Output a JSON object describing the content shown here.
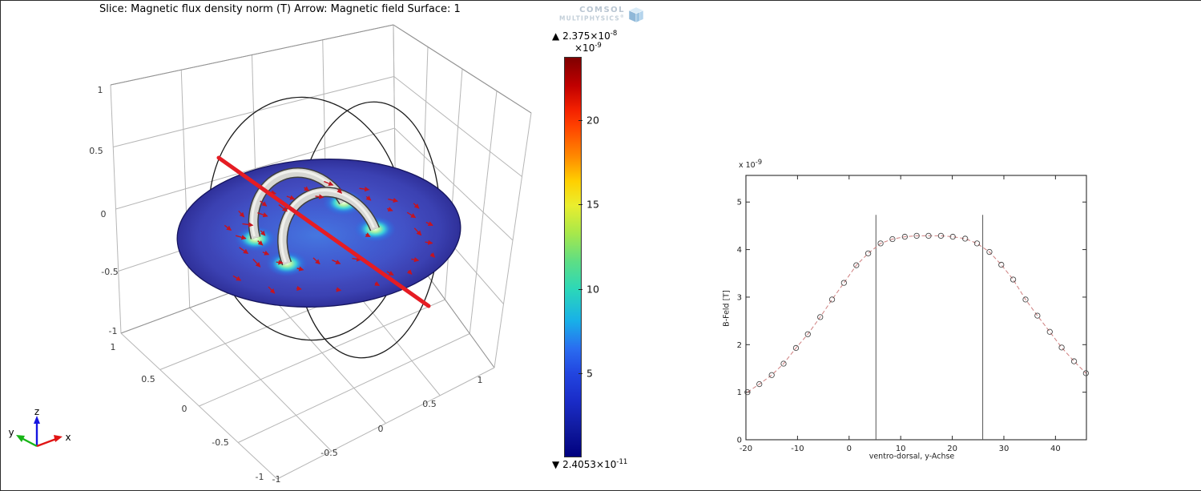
{
  "plot3d": {
    "title": "Slice: Magnetic flux density norm (T) Arrow: Magnetic field Surface: 1",
    "z_ticks": [
      "1",
      "0.5",
      "0",
      "-0.5",
      "-1"
    ],
    "y_floor_ticks": [
      "1",
      "0.5",
      "0",
      "-0.5",
      "-1"
    ],
    "x_floor_ticks": [
      "1",
      "0.5",
      "0",
      "-0.5",
      "-1"
    ],
    "triad": {
      "x_label": "x",
      "y_label": "y",
      "z_label": "z"
    }
  },
  "logo": {
    "line1": "COMSOL",
    "line2": "MULTIPHYSICS",
    "registered": "®"
  },
  "colorbar": {
    "max_marker": "▲",
    "max_base": "2.375×10",
    "max_exp": "-8",
    "scale_base": "×10",
    "scale_exp": "-9",
    "ticks": [
      "20",
      "15",
      "10",
      "5"
    ],
    "tick_values": [
      20,
      15,
      10,
      5
    ],
    "min_marker": "▼",
    "min_base": "2.4053×10",
    "min_exp": "-11",
    "range_max": 23.75,
    "range_min": 0.024053
  },
  "colors": {
    "red_line": "#e51c23",
    "field_arrow": "#c41420",
    "curve_line": "#cf7f7f",
    "marker_edge": "#4a4a4a",
    "marker_line": "#555555",
    "disc_blue": "#4450c4",
    "colorbar_top": "#7f0000",
    "colorbar_bottom": "#000080"
  },
  "chart_data": {
    "type": "line",
    "title": "",
    "xlabel": "ventro-dorsal, y-Achse",
    "ylabel": "B-Feld [T]",
    "y_multiplier_base": "x 10",
    "y_multiplier_exp": "-9",
    "xlim": [
      -20,
      46
    ],
    "ylim": [
      0,
      5.56
    ],
    "xticks": [
      "-20",
      "-10",
      "0",
      "10",
      "20",
      "30",
      "40"
    ],
    "xtick_values": [
      -20,
      -10,
      0,
      10,
      20,
      30,
      40
    ],
    "yticks": [
      "0",
      "1",
      "2",
      "3",
      "4",
      "5"
    ],
    "ytick_values": [
      0,
      1,
      2,
      3,
      4,
      5
    ],
    "grid": false,
    "legend_position": "none",
    "line_style": "dash-dot",
    "marker": "open-circle",
    "vertical_markers": [
      5.2,
      25.9
    ],
    "vertical_marker_top": 4.73,
    "series": [
      {
        "x": [
          -19.7,
          -17.4,
          -15.0,
          -12.7,
          -10.3,
          -8.0,
          -5.6,
          -3.3,
          -1.0,
          1.4,
          3.7,
          6.1,
          8.4,
          10.8,
          13.1,
          15.4,
          17.8,
          20.1,
          22.5,
          24.8,
          27.2,
          29.5,
          31.8,
          34.2,
          36.5,
          38.9,
          41.2,
          43.6,
          45.9
        ],
        "y": [
          1.0,
          1.17,
          1.36,
          1.6,
          1.93,
          2.22,
          2.58,
          2.95,
          3.3,
          3.67,
          3.92,
          4.13,
          4.22,
          4.27,
          4.29,
          4.29,
          4.29,
          4.27,
          4.23,
          4.13,
          3.95,
          3.68,
          3.37,
          2.95,
          2.61,
          2.27,
          1.94,
          1.65,
          1.4
        ]
      }
    ]
  }
}
